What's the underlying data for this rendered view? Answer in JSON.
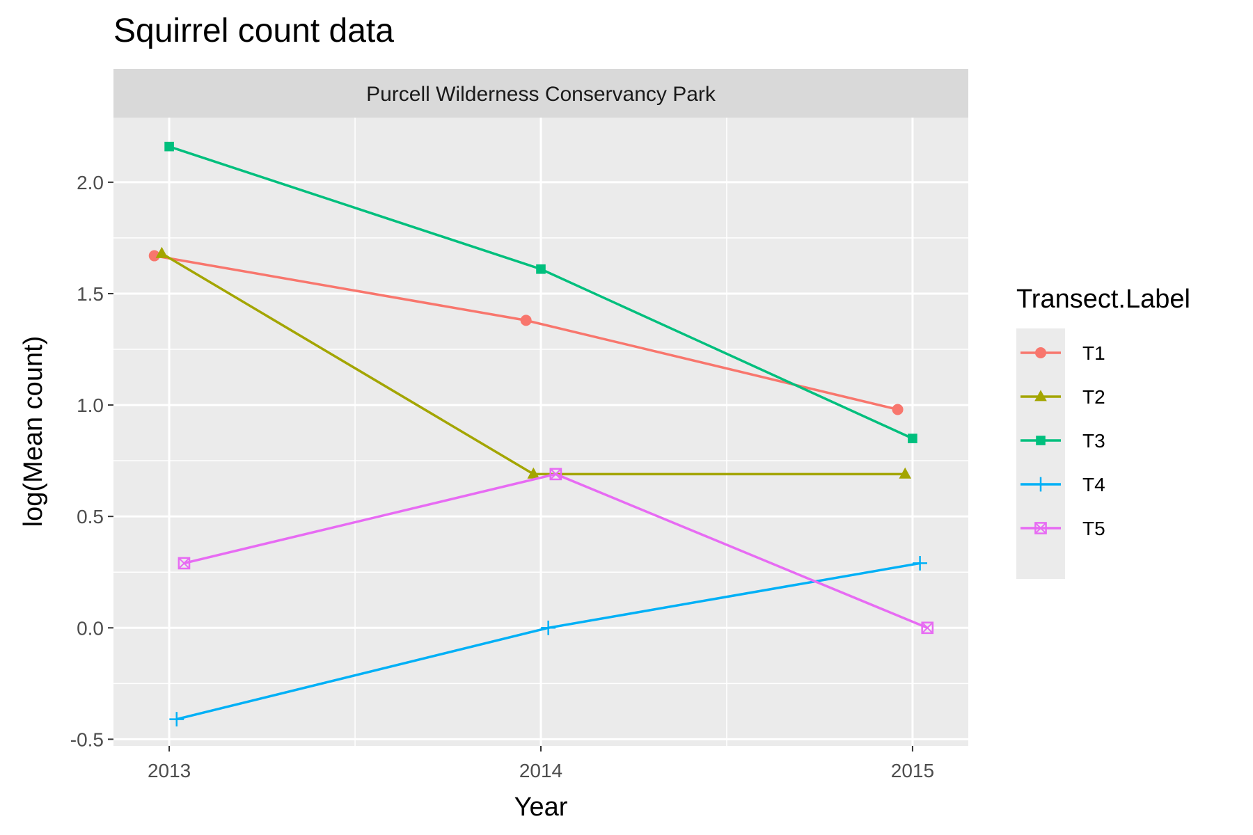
{
  "chart_data": {
    "type": "line",
    "title": "Squirrel count data",
    "facet": "Purcell Wilderness Conservancy Park",
    "xlabel": "Year",
    "ylabel": "log(Mean count)",
    "x_ticks": [
      2013,
      2014,
      2015
    ],
    "y_ticks": [
      -0.5,
      0.0,
      0.5,
      1.0,
      1.5,
      2.0
    ],
    "y_tick_labels": [
      "-0.5",
      "0.0",
      "0.5",
      "1.0",
      "1.5",
      "2.0"
    ],
    "xlim": [
      2012.85,
      2015.15
    ],
    "ylim": [
      -0.53,
      2.29
    ],
    "grid": true,
    "legend_title": "Transect.Label",
    "legend_position": "right",
    "series": [
      {
        "name": "T1",
        "color": "#F8766D",
        "shape": "circle",
        "x": [
          2013,
          2014,
          2015
        ],
        "values": [
          1.67,
          1.38,
          0.98
        ]
      },
      {
        "name": "T2",
        "color": "#A3A500",
        "shape": "triangle",
        "x": [
          2013,
          2014,
          2015
        ],
        "values": [
          1.68,
          0.69,
          0.69
        ]
      },
      {
        "name": "T3",
        "color": "#00BF7D",
        "shape": "square",
        "x": [
          2013,
          2014,
          2015
        ],
        "values": [
          2.16,
          1.61,
          0.85
        ]
      },
      {
        "name": "T4",
        "color": "#00B0F6",
        "shape": "plus",
        "x": [
          2013,
          2014,
          2015
        ],
        "values": [
          -0.41,
          0.0,
          0.29
        ]
      },
      {
        "name": "T5",
        "color": "#E76BF3",
        "shape": "boxx",
        "x": [
          2013,
          2014,
          2015
        ],
        "values": [
          0.29,
          0.69,
          0.0
        ]
      }
    ]
  }
}
